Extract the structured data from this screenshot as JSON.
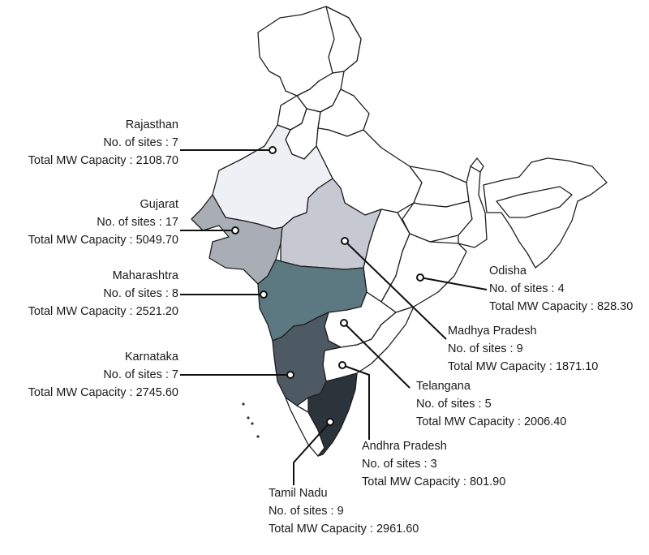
{
  "colors": {
    "rajasthan": "#eff0f5",
    "gujarat": "#a9adb6",
    "madhya_pradesh": "#c6c9d2",
    "maharashtra": "#5c7880",
    "karnataka": "#4e5a63",
    "tamil_nadu": "#2b343b",
    "unfilled": "#ffffff",
    "border": "#1e1e1e"
  },
  "states": [
    {
      "id": "rajasthan",
      "name": "Rajasthan",
      "sites_label": "No. of sites : 7",
      "capacity_label": "Total MW Capacity : 2108.70",
      "sites": 7,
      "capacity_mw": 2108.7
    },
    {
      "id": "gujarat",
      "name": "Gujarat",
      "sites_label": "No. of sites : 17",
      "capacity_label": "Total MW Capacity : 5049.70",
      "sites": 17,
      "capacity_mw": 5049.7
    },
    {
      "id": "maharashtra",
      "name": "Maharashtra",
      "sites_label": "No. of sites : 8",
      "capacity_label": "Total MW Capacity : 2521.20",
      "sites": 8,
      "capacity_mw": 2521.2
    },
    {
      "id": "karnataka",
      "name": "Karnataka",
      "sites_label": "No. of sites : 7",
      "capacity_label": "Total MW Capacity : 2745.60",
      "sites": 7,
      "capacity_mw": 2745.6
    },
    {
      "id": "tamil_nadu",
      "name": "Tamil Nadu",
      "sites_label": "No. of sites : 9",
      "capacity_label": "Total MW Capacity : 2961.60",
      "sites": 9,
      "capacity_mw": 2961.6
    },
    {
      "id": "odisha",
      "name": "Odisha",
      "sites_label": "No. of sites : 4",
      "capacity_label": "Total MW Capacity : 828.30",
      "sites": 4,
      "capacity_mw": 828.3
    },
    {
      "id": "madhya_pradesh",
      "name": "Madhya Pradesh",
      "sites_label": "No. of sites : 9",
      "capacity_label": "Total MW Capacity : 1871.10",
      "sites": 9,
      "capacity_mw": 1871.1
    },
    {
      "id": "telangana",
      "name": "Telangana",
      "sites_label": "No. of sites : 5",
      "capacity_label": "Total MW Capacity : 2006.40",
      "sites": 5,
      "capacity_mw": 2006.4
    },
    {
      "id": "andhra_pradesh",
      "name": "Andhra Pradesh",
      "sites_label": "No. of sites : 3",
      "capacity_label": "Total MW Capacity : 801.90",
      "sites": 3,
      "capacity_mw": 801.9
    }
  ]
}
